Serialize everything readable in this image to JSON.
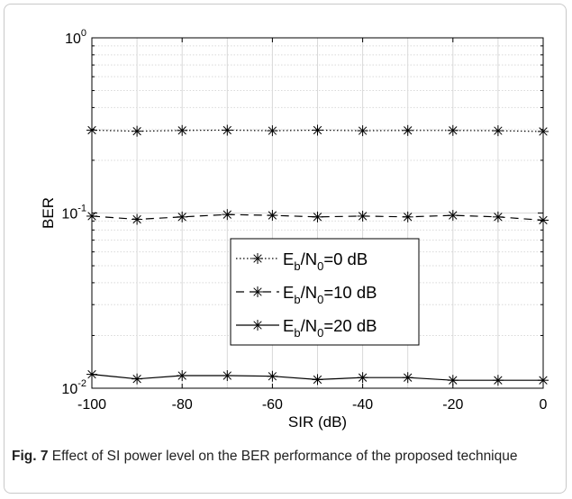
{
  "caption": {
    "label": "Fig. 7",
    "text": "Effect of SI power level on the BER performance of the proposed technique"
  },
  "chart_data": {
    "type": "line",
    "xlabel": "SIR (dB)",
    "ylabel": "BER",
    "xlim": [
      -100,
      0
    ],
    "ylim": [
      0.01,
      1
    ],
    "yscale": "log",
    "grid": true,
    "x_ticks": [
      -100,
      -80,
      -60,
      -40,
      -20,
      0
    ],
    "y_ticks": [
      {
        "value": 1,
        "base": "10",
        "exp": "0"
      },
      {
        "value": 0.1,
        "base": "10",
        "exp": "-1"
      },
      {
        "value": 0.01,
        "base": "10",
        "exp": "-2"
      }
    ],
    "legend_position": "center-right",
    "x": [
      -100,
      -90,
      -80,
      -70,
      -60,
      -50,
      -40,
      -30,
      -20,
      -10,
      0
    ],
    "series": [
      {
        "name": "Eb/N0=0 dB",
        "label_parts": {
          "E": "E",
          "b": "b",
          "N": "/N",
          "zero": "0",
          "rest": "=0 dB"
        },
        "style": "dotted",
        "values": [
          0.297,
          0.293,
          0.296,
          0.297,
          0.295,
          0.297,
          0.295,
          0.296,
          0.296,
          0.295,
          0.292
        ]
      },
      {
        "name": "Eb/N0=10 dB",
        "label_parts": {
          "E": "E",
          "b": "b",
          "N": "/N",
          "zero": "0",
          "rest": "=10 dB"
        },
        "style": "dashed",
        "values": [
          0.096,
          0.092,
          0.095,
          0.098,
          0.097,
          0.095,
          0.096,
          0.095,
          0.097,
          0.095,
          0.091
        ]
      },
      {
        "name": "Eb/N0=20 dB",
        "label_parts": {
          "E": "E",
          "b": "b",
          "N": "/N",
          "zero": "0",
          "rest": "=20 dB"
        },
        "style": "solid",
        "values": [
          0.012,
          0.0113,
          0.0118,
          0.0118,
          0.0117,
          0.0112,
          0.0115,
          0.0115,
          0.0111,
          0.0111,
          0.0111
        ]
      }
    ],
    "colors": {
      "line": "#000000",
      "grid": "#d9d9d9",
      "axis": "#000000"
    }
  }
}
